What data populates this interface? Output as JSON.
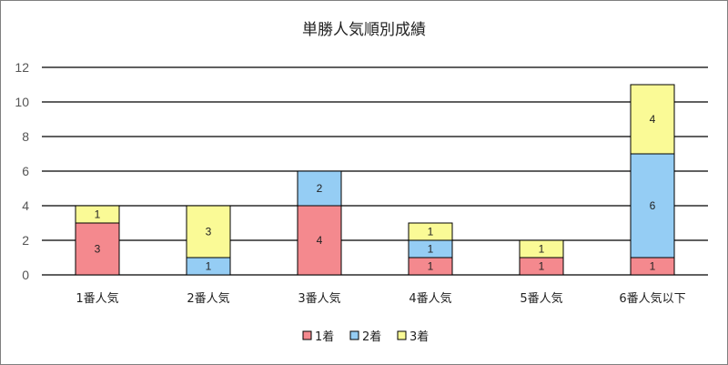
{
  "chart_data": {
    "type": "bar",
    "stacked": true,
    "title": "単勝人気順別成績",
    "xlabel": "",
    "ylabel": "",
    "categories": [
      "1番人気",
      "2番人気",
      "3番人気",
      "4番人気",
      "5番人気",
      "6番人気以下"
    ],
    "series": [
      {
        "name": "1着",
        "color": "#f4898e",
        "values": [
          3,
          0,
          4,
          1,
          1,
          1
        ]
      },
      {
        "name": "2着",
        "color": "#95cdf4",
        "values": [
          0,
          1,
          2,
          1,
          0,
          6
        ]
      },
      {
        "name": "3着",
        "color": "#fafa96",
        "values": [
          1,
          3,
          0,
          1,
          1,
          4
        ]
      }
    ],
    "ylim": [
      0,
      12
    ],
    "yticks": [
      0,
      2,
      4,
      6,
      8,
      10,
      12
    ],
    "grid": true,
    "legend_position": "bottom"
  }
}
